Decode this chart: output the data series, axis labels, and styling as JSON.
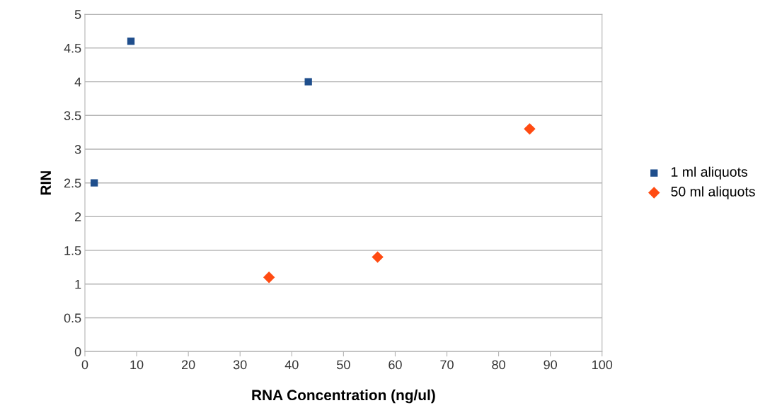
{
  "chart_data": {
    "type": "scatter",
    "xlabel": "RNA Concentration (ng/ul)",
    "ylabel": "RIN",
    "series": [
      {
        "name": "1 ml aliquots",
        "color": "#1f4e8c",
        "marker": "square",
        "x": [
          1.8,
          8.9,
          43.2
        ],
        "values": [
          2.5,
          4.6,
          4.0
        ]
      },
      {
        "name": "50 ml aliquots",
        "color": "#ff4b12",
        "marker": "diamond",
        "x": [
          35.6,
          56.6,
          86.0
        ],
        "values": [
          1.1,
          1.4,
          3.3
        ]
      }
    ],
    "xlim": [
      0,
      100
    ],
    "xticks": [
      0,
      10,
      20,
      30,
      40,
      50,
      60,
      70,
      80,
      90,
      100
    ],
    "ylim": [
      0,
      5
    ],
    "yticks": [
      0,
      {
        "value": 0.5,
        "label": "0.5"
      },
      1,
      {
        "value": 1.5,
        "label": "1.5"
      },
      2,
      {
        "value": 2.5,
        "label": "2.5"
      },
      3,
      {
        "value": 3.5,
        "label": "3.5"
      },
      4,
      {
        "value": 4.5,
        "label": "4.5"
      },
      5
    ],
    "grid": "y",
    "legend": "right"
  }
}
